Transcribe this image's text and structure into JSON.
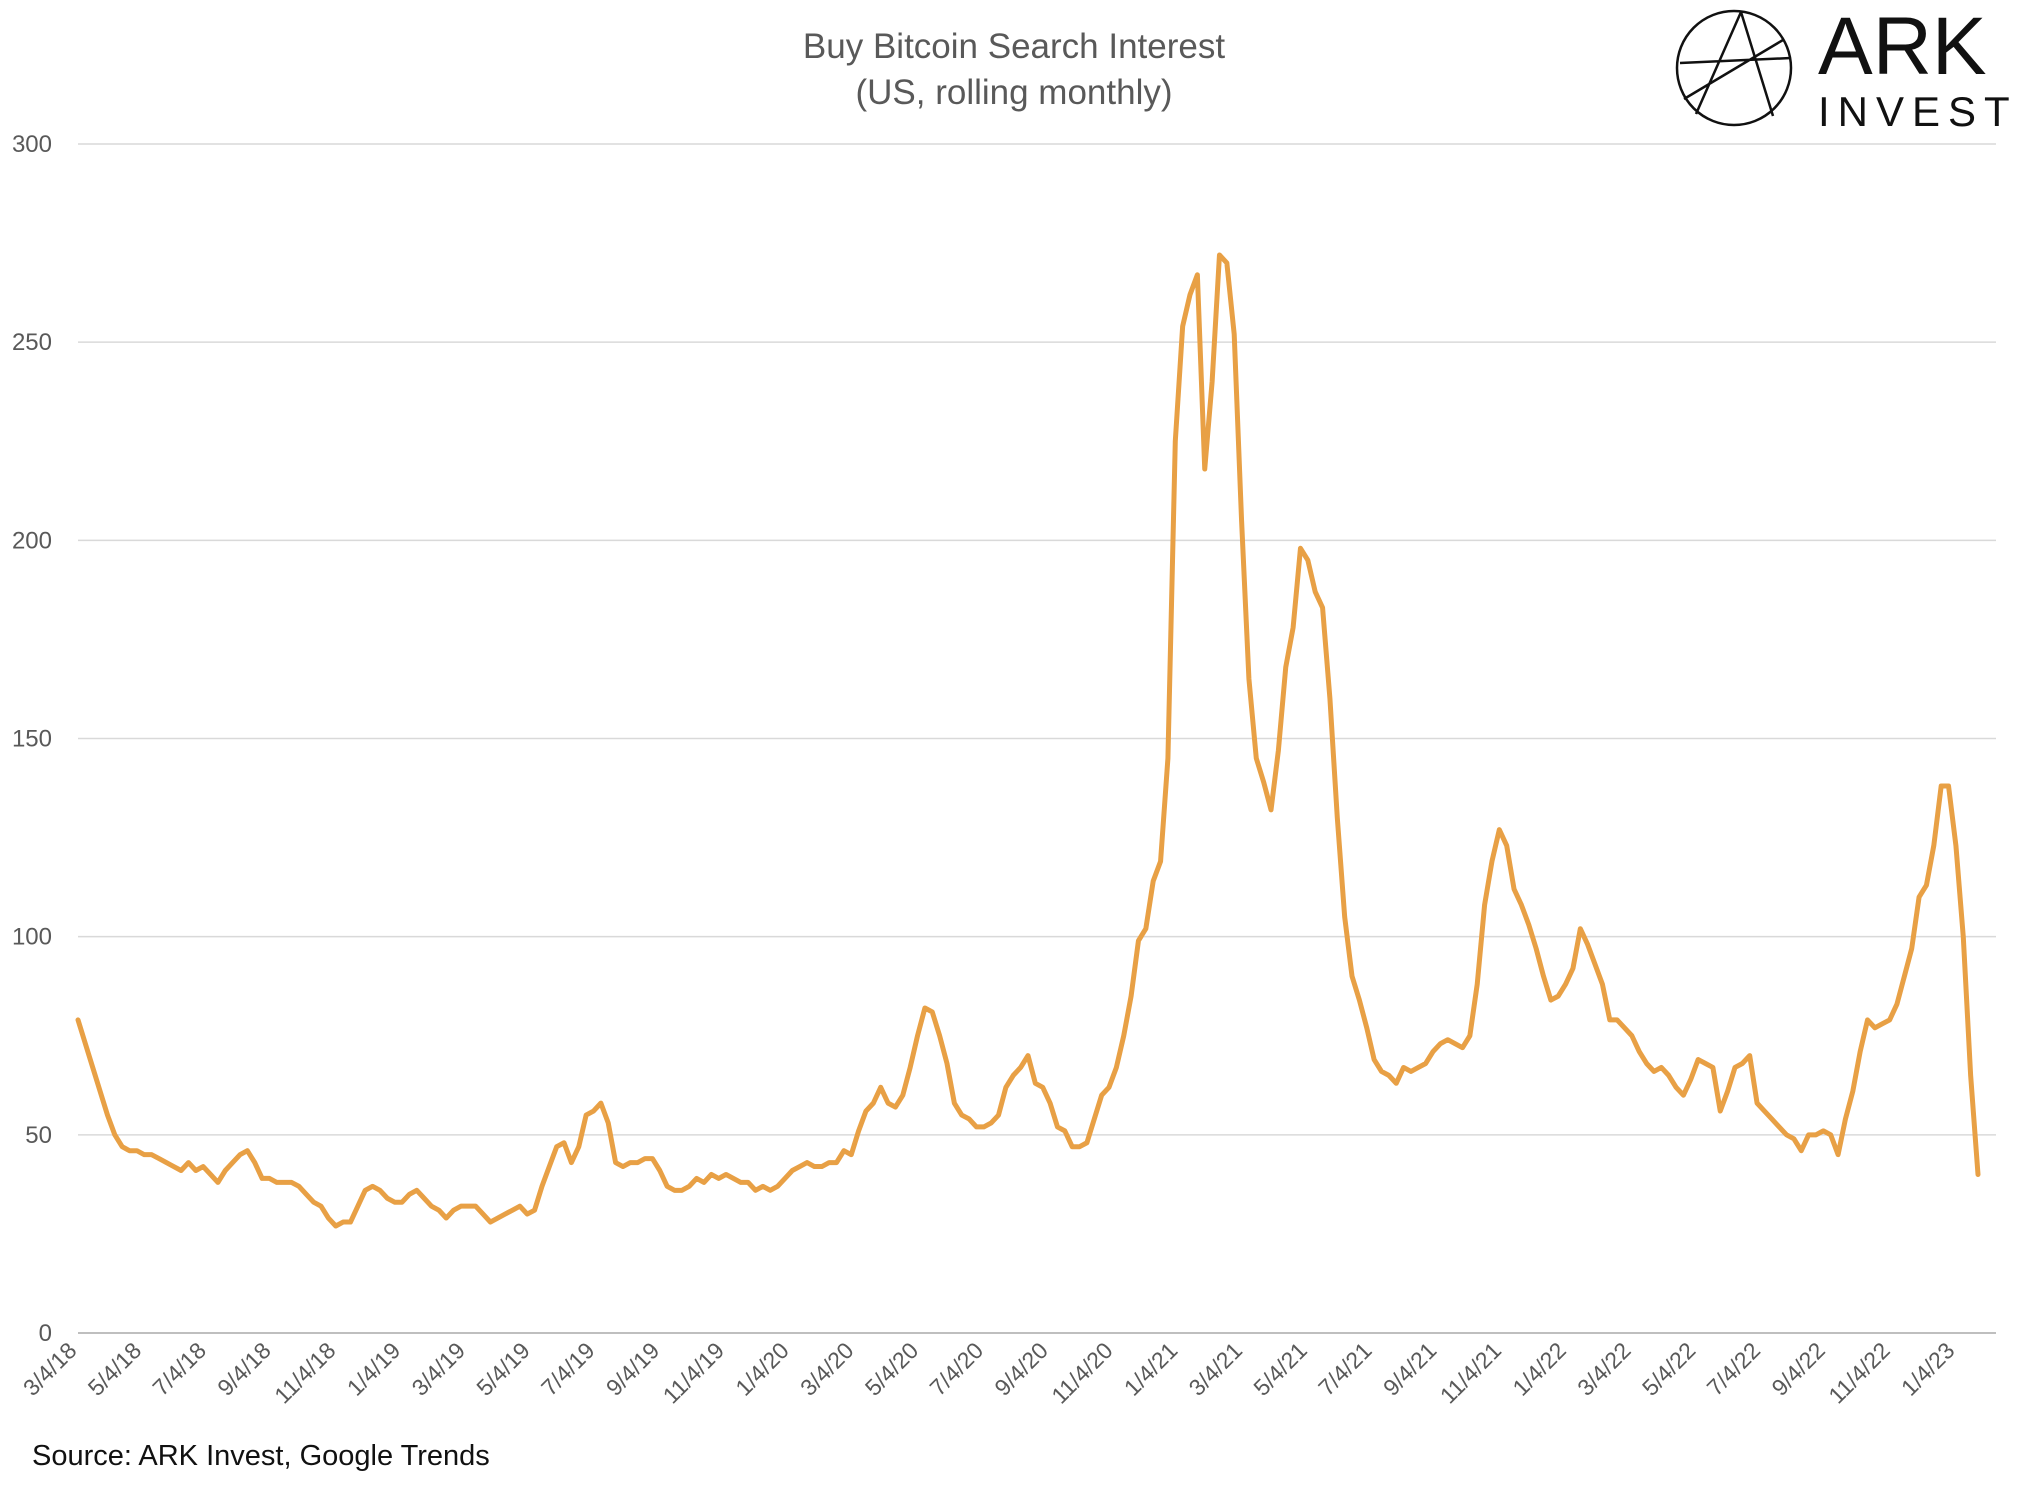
{
  "colors": {
    "line": "#E8A045",
    "grid": "#D9D9D9",
    "text": "#595959",
    "logo": "#111111"
  },
  "logo": {
    "name": "ARK",
    "sub": "INVEST"
  },
  "source": "Source: ARK Invest, Google Trends",
  "chart_data": {
    "type": "line",
    "title": "Buy Bitcoin Search Interest",
    "subtitle": "(US, rolling monthly)",
    "xlabel": "",
    "ylabel": "",
    "ylim": [
      0,
      300
    ],
    "yticks": [
      "0",
      "50",
      "100",
      "150",
      "200",
      "250",
      "300"
    ],
    "grid": true,
    "legend": "none",
    "x_tick_labels": [
      "3/4/18",
      "5/4/18",
      "7/4/18",
      "9/4/18",
      "11/4/18",
      "1/4/19",
      "3/4/19",
      "5/4/19",
      "7/4/19",
      "9/4/19",
      "11/4/19",
      "1/4/20",
      "3/4/20",
      "5/4/20",
      "7/4/20",
      "9/4/20",
      "11/4/20",
      "1/4/21",
      "3/4/21",
      "5/4/21",
      "7/4/21",
      "9/4/21",
      "11/4/21",
      "1/4/22",
      "3/4/22",
      "5/4/22",
      "7/4/22",
      "9/4/22",
      "11/4/22",
      "1/4/23"
    ],
    "series": [
      {
        "values": [
          79,
          73,
          67,
          61,
          55,
          50,
          47,
          46,
          46,
          45,
          45,
          44,
          43,
          42,
          41,
          43,
          41,
          42,
          40,
          38,
          41,
          43,
          45,
          46,
          43,
          39,
          39,
          38,
          38,
          38,
          37,
          35,
          33,
          32,
          29,
          27,
          28,
          28,
          32,
          36,
          37,
          36,
          34,
          33,
          33,
          35,
          36,
          34,
          32,
          31,
          29,
          31,
          32,
          32,
          32,
          30,
          28,
          29,
          30,
          31,
          32,
          30,
          31,
          37,
          42,
          47,
          48,
          43,
          47,
          55,
          56,
          58,
          53,
          43,
          42,
          43,
          43,
          44,
          44,
          41,
          37,
          36,
          36,
          37,
          39,
          38,
          40,
          39,
          40,
          39,
          38,
          38,
          36,
          37,
          36,
          37,
          39,
          41,
          42,
          43,
          42,
          42,
          43,
          43,
          46,
          45,
          51,
          56,
          58,
          62,
          58,
          57,
          60,
          67,
          75,
          82,
          81,
          75,
          68,
          58,
          55,
          54,
          52,
          52,
          53,
          55,
          62,
          65,
          67,
          70,
          63,
          62,
          58,
          52,
          51,
          47,
          47,
          48,
          54,
          60,
          62,
          67,
          75,
          85,
          99,
          102,
          114,
          119,
          145,
          225,
          254,
          262,
          267,
          218,
          240,
          272,
          270,
          252,
          205,
          165,
          145,
          139,
          132,
          147,
          168,
          178,
          198,
          195,
          187,
          183,
          160,
          130,
          105,
          90,
          84,
          77,
          69,
          66,
          65,
          63,
          67,
          66,
          67,
          68,
          71,
          73,
          74,
          73,
          72,
          75,
          88,
          108,
          119,
          127,
          123,
          112,
          108,
          103,
          97,
          90,
          84,
          85,
          88,
          92,
          102,
          98,
          93,
          88,
          79,
          79,
          77,
          75,
          71,
          68,
          66,
          67,
          65,
          62,
          60,
          64,
          69,
          68,
          67,
          56,
          61,
          67,
          68,
          70,
          58,
          56,
          54,
          52,
          50,
          49,
          46,
          50,
          50,
          51,
          50,
          45,
          54,
          61,
          71,
          79,
          77,
          78,
          79,
          83,
          90,
          97,
          110,
          113,
          123,
          138,
          138,
          123,
          100,
          65,
          40
        ]
      }
    ]
  }
}
